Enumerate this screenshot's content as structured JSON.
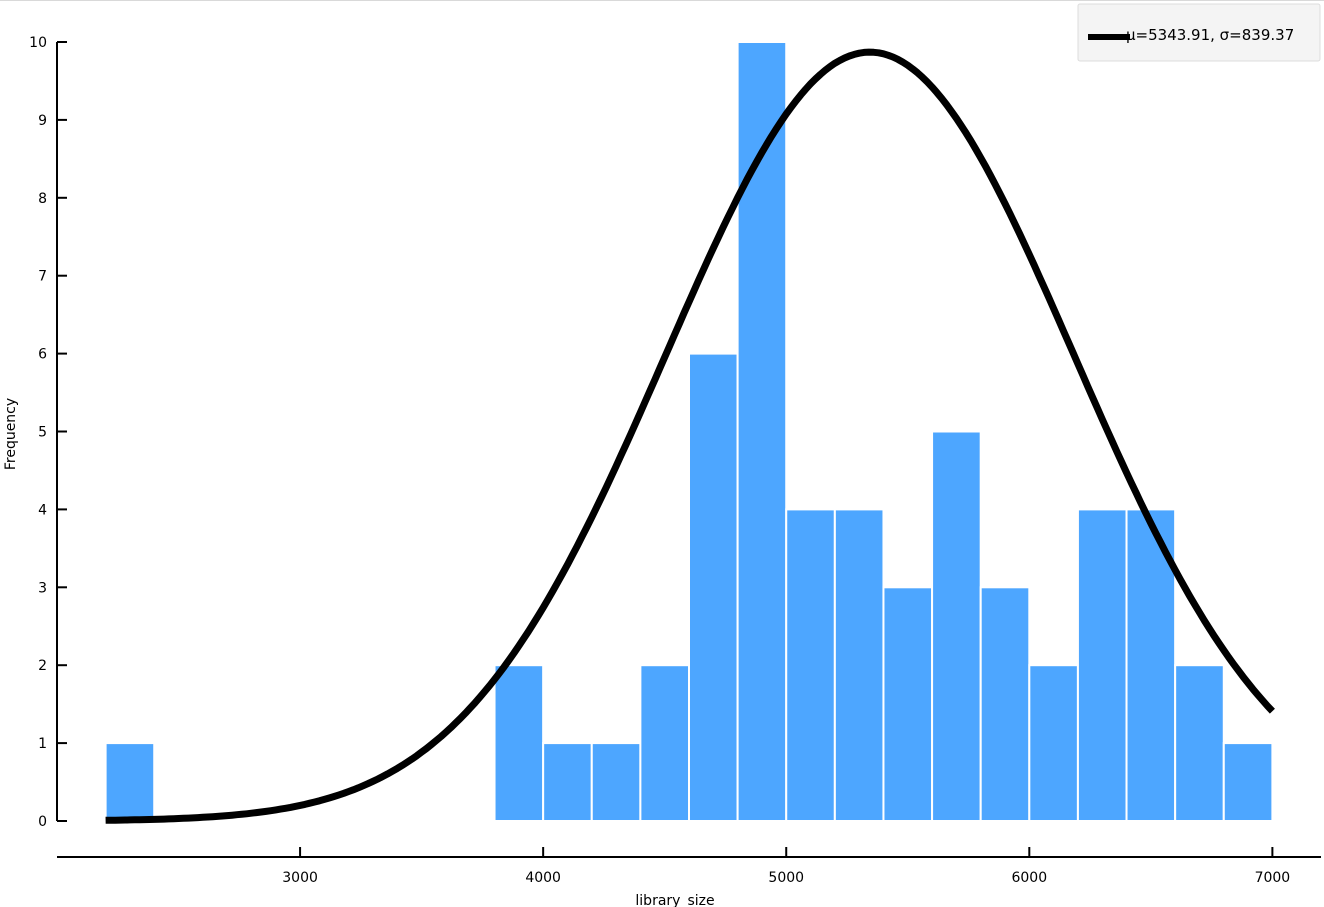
{
  "chart_data": {
    "type": "bar",
    "subtype": "histogram",
    "xlabel": "library_size",
    "ylabel": "Frequency",
    "xlim": [
      2000,
      7200
    ],
    "ylim": [
      0,
      10
    ],
    "x_ticks": [
      3000,
      4000,
      5000,
      6000,
      7000
    ],
    "y_ticks": [
      0,
      1,
      2,
      3,
      4,
      5,
      6,
      7,
      8,
      9,
      10
    ],
    "bar_color": "#4da6ff",
    "bins": [
      {
        "start": 2200,
        "end": 2400,
        "count": 1
      },
      {
        "start": 3800,
        "end": 4000,
        "count": 2
      },
      {
        "start": 4000,
        "end": 4200,
        "count": 1
      },
      {
        "start": 4200,
        "end": 4400,
        "count": 1
      },
      {
        "start": 4400,
        "end": 4600,
        "count": 2
      },
      {
        "start": 4600,
        "end": 4800,
        "count": 6
      },
      {
        "start": 4800,
        "end": 5000,
        "count": 10
      },
      {
        "start": 5000,
        "end": 5200,
        "count": 4
      },
      {
        "start": 5200,
        "end": 5400,
        "count": 4
      },
      {
        "start": 5400,
        "end": 5600,
        "count": 3
      },
      {
        "start": 5600,
        "end": 5800,
        "count": 5
      },
      {
        "start": 5800,
        "end": 6000,
        "count": 3
      },
      {
        "start": 6000,
        "end": 6200,
        "count": 2
      },
      {
        "start": 6200,
        "end": 6400,
        "count": 4
      },
      {
        "start": 6400,
        "end": 6600,
        "count": 4
      },
      {
        "start": 6600,
        "end": 6800,
        "count": 2
      },
      {
        "start": 6800,
        "end": 7000,
        "count": 1
      }
    ],
    "fit_curve": {
      "mu": 5343.91,
      "sigma": 839.37,
      "peak": 9.87,
      "x_range": [
        2200,
        7000
      ],
      "color": "#000000",
      "label": "μ=5343.91, σ=839.37"
    },
    "legend_position": "top-right"
  }
}
